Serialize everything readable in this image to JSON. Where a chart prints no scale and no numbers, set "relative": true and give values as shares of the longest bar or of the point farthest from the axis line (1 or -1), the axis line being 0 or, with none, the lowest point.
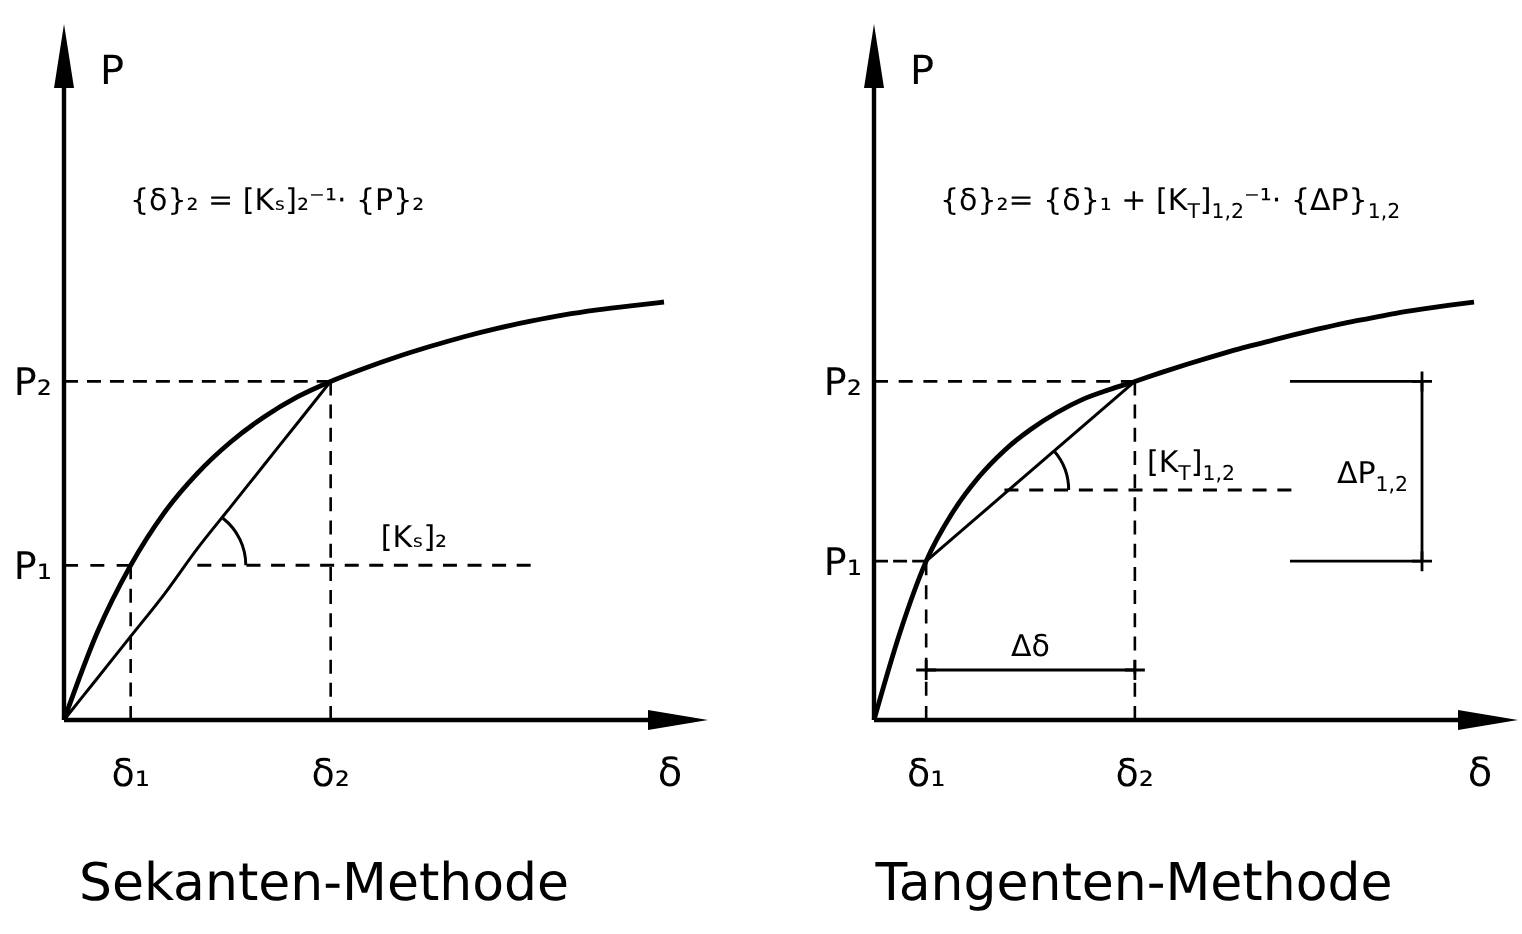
{
  "chart_data": [
    {
      "type": "line",
      "title": "Sekanten-Methode",
      "xlabel": "δ",
      "ylabel": "P",
      "relative": true,
      "categories": [
        null,
        null,
        "δ₁",
        null,
        null,
        null,
        null,
        null,
        "δ₂",
        null,
        null,
        null,
        null,
        null,
        null,
        null,
        null,
        null,
        null
      ],
      "series": [
        {
          "color": "#000000",
          "values": [
            0,
            0.21,
            0.37,
            0.495,
            0.59,
            0.665,
            0.725,
            0.773,
            0.81,
            0.841,
            0.869,
            0.894,
            0.917,
            0.937,
            0.954,
            0.969,
            0.981,
            0.991,
            1
          ]
        },
        {
          "color": "#000000",
          "values": [
            0,
            0.1,
            0.2,
            0.3,
            0.41,
            0.51,
            0.61,
            0.71,
            0.81,
            null,
            null,
            null,
            null,
            null,
            null,
            null,
            null,
            null,
            null
          ]
        },
        {
          "name": "[Kₛ]₂",
          "color": "#000000",
          "line_style": "dashed",
          "values": [
            null,
            null,
            null,
            null,
            0.37,
            0.37,
            0.37,
            0.37,
            0.37,
            0.37,
            0.37,
            0.37,
            0.37,
            0.37,
            0.37,
            null,
            null,
            null,
            null
          ]
        }
      ],
      "ref_lines": [
        {
          "axis": "y",
          "value": 0.37,
          "label": "P₁",
          "line_style": "dashed"
        },
        {
          "axis": "y",
          "value": 0.81,
          "label": "P₂",
          "line_style": "dashed"
        },
        {
          "axis": "x",
          "value": "δ₁",
          "line_style": "dashed"
        },
        {
          "axis": "x",
          "value": "δ₂",
          "line_style": "dashed"
        }
      ],
      "annotations": [
        "{δ}₂ = [Kₛ]₂⁻¹· {P}₂"
      ]
    },
    {
      "type": "line",
      "title": "Tangenten-Methode",
      "xlabel": "δ",
      "ylabel": "P",
      "relative": true,
      "categories": [
        null,
        null,
        "δ₁",
        null,
        null,
        null,
        null,
        null,
        null,
        null,
        "δ₂",
        null,
        null,
        null,
        null,
        null,
        null,
        null,
        null,
        null,
        null,
        null,
        null,
        null
      ],
      "series": [
        {
          "color": "#000000",
          "values": [
            0,
            0.21,
            0.38,
            0.495,
            0.58,
            0.645,
            0.695,
            0.735,
            0.767,
            0.79,
            0.81,
            0.831,
            0.851,
            0.87,
            0.888,
            0.904,
            0.92,
            0.935,
            0.949,
            0.961,
            0.973,
            0.983,
            0.992,
            1
          ]
        },
        {
          "color": "#000000",
          "x": [
            "δ₁",
            "δ₂"
          ],
          "values": [
            0.38,
            0.81
          ]
        },
        {
          "name": "[K$_{T}$]$_{1,2}$",
          "color": "#000000",
          "line_style": "dashed",
          "values": [
            null,
            null,
            null,
            null,
            null,
            0.55,
            0.55,
            0.55,
            0.55,
            0.55,
            0.55,
            0.55,
            0.55,
            0.55,
            0.55,
            0.55,
            0.55,
            null,
            null,
            null,
            null,
            null,
            null,
            null
          ]
        }
      ],
      "ref_lines": [
        {
          "axis": "y",
          "value": 0.38,
          "label": "P₁",
          "line_style": "dashed"
        },
        {
          "axis": "y",
          "value": 0.81,
          "label": "P₂",
          "line_style": "dashed"
        },
        {
          "axis": "x",
          "value": "δ₁",
          "line_style": "dashed"
        },
        {
          "axis": "x",
          "value": "δ₂",
          "line_style": "dashed"
        }
      ],
      "annotations": [
        "{δ}₂= {δ}₁ + [K$_{T}$]$_{1,2}$⁻¹· {ΔP}$_{1,2}$",
        "Δδ",
        "ΔP$_{1,2}$"
      ]
    }
  ]
}
